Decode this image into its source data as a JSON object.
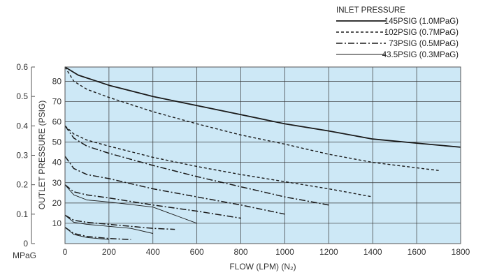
{
  "chart_data": {
    "type": "line",
    "xlabel": "FLOW (LPM) (N₂)",
    "ylabel": "OUTLET PRESSURE (PSIG)",
    "y2label": "MPaG",
    "xlim": [
      0,
      1800
    ],
    "ylim_psig": [
      0,
      87
    ],
    "ylim_mpag": [
      0,
      0.6
    ],
    "xticks": [
      "0",
      "200",
      "400",
      "600",
      "800",
      "1000",
      "1200",
      "1400",
      "1600",
      "1800"
    ],
    "yticks_psig": [
      "10",
      "20",
      "30",
      "40",
      "50",
      "60",
      "70",
      "80"
    ],
    "yticks_mpag": [
      "0",
      "0.1",
      "0.2",
      "0.3",
      "0.4",
      "0.5",
      "0.6"
    ],
    "grid": true,
    "plot_background": "#cde8f6",
    "line_color": "#1a1a1a",
    "legend": {
      "title": "INLET PRESSURE",
      "placement": "top-right",
      "entries": [
        "145PSIG (1.0MPaG)",
        "102PSIG (0.7MPaG)",
        "73PSIG (0.5MPaG)",
        "43.5PSIG (0.3MPaG)"
      ]
    },
    "series": [
      {
        "name": "145PSIG (1.0MPaG)",
        "style": "solid",
        "curves": [
          {
            "x": [
              0,
              60,
              200,
              400,
              600,
              800,
              1000,
              1200,
              1400,
              1600,
              1800
            ],
            "y": [
              87,
              83,
              78,
              72.5,
              68,
              63.5,
              59,
              55.5,
              51.5,
              49.5,
              47.5
            ]
          }
        ]
      },
      {
        "name": "102PSIG (0.7MPaG)",
        "style": "dashed",
        "curves": [
          {
            "x": [
              0,
              40,
              100,
              200,
              400,
              600,
              800,
              1000,
              1200,
              1400,
              1700
            ],
            "y": [
              87,
              80,
              76,
              72,
              65,
              59,
              53.5,
              49,
              44,
              40,
              36
            ]
          },
          {
            "x": [
              0,
              40,
              100,
              200,
              400,
              600,
              800,
              1000,
              1200,
              1400
            ],
            "y": [
              58,
              54,
              51,
              48,
              42.5,
              38,
              34,
              30.5,
              27,
              23
            ]
          }
        ]
      },
      {
        "name": "73PSIG (0.5MPaG)",
        "style": "dashdot",
        "curves": [
          {
            "x": [
              0,
              40,
              100,
              200,
              400,
              600,
              800,
              1000,
              1200
            ],
            "y": [
              58,
              52,
              48,
              44.5,
              38.5,
              33,
              28,
              23,
              19
            ]
          },
          {
            "x": [
              0,
              40,
              100,
              200,
              400,
              600,
              800,
              1000
            ],
            "y": [
              43,
              37,
              34,
              32,
              27,
              23,
              19,
              14.5
            ]
          },
          {
            "x": [
              0,
              40,
              100,
              200,
              400,
              600,
              800
            ],
            "y": [
              29,
              25.5,
              24,
              22.5,
              19,
              16,
              12.5
            ]
          },
          {
            "x": [
              0,
              40,
              100,
              200,
              300,
              400,
              500
            ],
            "y": [
              14,
              11.5,
              10.5,
              9.5,
              8.5,
              7.5,
              7
            ]
          },
          {
            "x": [
              0,
              40,
              100,
              200,
              300
            ],
            "y": [
              8,
              5,
              3.5,
              2.5,
              2
            ]
          }
        ]
      },
      {
        "name": "43.5PSIG (0.3MPaG)",
        "style": "thin",
        "curves": [
          {
            "x": [
              0,
              40,
              100,
              200,
              400,
              500,
              600
            ],
            "y": [
              29,
              24,
              21.5,
              20.5,
              18,
              14,
              10
            ]
          },
          {
            "x": [
              0,
              40,
              100,
              200,
              300,
              400
            ],
            "y": [
              14,
              10.5,
              9.5,
              8.5,
              7.5,
              5
            ]
          },
          {
            "x": [
              0,
              40,
              100,
              200
            ],
            "y": [
              8,
              4.5,
              3,
              2
            ]
          }
        ]
      }
    ]
  }
}
